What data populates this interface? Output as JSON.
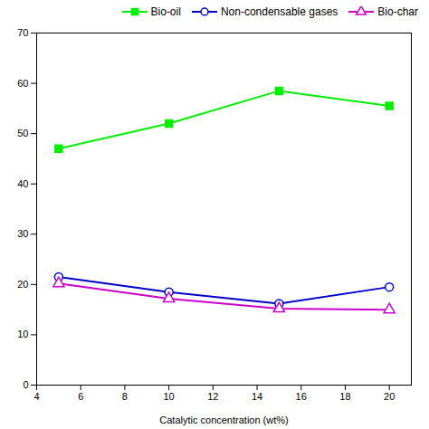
{
  "chart_data": {
    "type": "line",
    "xlabel": "Catalytic concentration (wt%)",
    "x": [
      5,
      10,
      15,
      20
    ],
    "series": [
      {
        "name": "Bio-oil",
        "color": "#00ee00",
        "marker": "square",
        "values": [
          47.0,
          52.0,
          58.5,
          55.5
        ]
      },
      {
        "name": "Non-condensable gases",
        "color": "#0000cc",
        "marker": "circle",
        "values": [
          21.5,
          18.5,
          16.2,
          19.5
        ]
      },
      {
        "name": "Bio-char",
        "color": "#cc00cc",
        "marker": "triangle",
        "values": [
          20.2,
          17.2,
          15.2,
          15.0
        ]
      }
    ],
    "xlim": [
      4,
      21
    ],
    "xticks": [
      4,
      6,
      8,
      10,
      12,
      14,
      16,
      18,
      20
    ],
    "ylim": [
      0,
      70
    ],
    "yticks": [
      0,
      10,
      20,
      30,
      40,
      50,
      60,
      70
    ],
    "legend": "upper right",
    "grid": false
  }
}
